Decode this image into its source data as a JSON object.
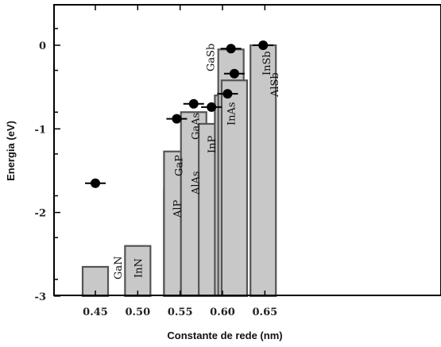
{
  "chart_data": {
    "type": "bar",
    "xlabel": "Constante de rede (nm)",
    "ylabel": "Energia (eV)",
    "xlim": [
      0.43,
      0.67
    ],
    "ylim": [
      -3,
      0.3
    ],
    "xticks": [
      "0.45",
      "0.50",
      "0.55",
      "0.60",
      "0.65"
    ],
    "yticks": [
      "0",
      "-1",
      "-2",
      "-3"
    ],
    "materials": [
      {
        "name": "GaN",
        "x": 0.45,
        "top": -2.65
      },
      {
        "name": "InN",
        "x": 0.5,
        "top": -2.4
      },
      {
        "name": "AlP",
        "x": 0.546,
        "top": -1.73
      },
      {
        "name": "GaP",
        "x": 0.546,
        "top": -1.27
      },
      {
        "name": "AlAs",
        "x": 0.566,
        "top": -1.32
      },
      {
        "name": "GaAs",
        "x": 0.566,
        "top": -0.8
      },
      {
        "name": "InP",
        "x": 0.587,
        "top": -0.94
      },
      {
        "name": "InAs",
        "x": 0.606,
        "top": -0.6
      },
      {
        "name": "GaSb",
        "x": 0.61,
        "top": -0.05
      },
      {
        "name": "AlSb",
        "x": 0.614,
        "top": -0.42
      },
      {
        "name": "InSb",
        "x": 0.648,
        "top": 0.0
      }
    ],
    "points": [
      {
        "x": 0.45,
        "y": -1.65
      },
      {
        "x": 0.546,
        "y": -0.88
      },
      {
        "x": 0.566,
        "y": -0.7
      },
      {
        "x": 0.587,
        "y": -0.74
      },
      {
        "x": 0.606,
        "y": -0.58
      },
      {
        "x": 0.61,
        "y": -0.04
      },
      {
        "x": 0.614,
        "y": -0.34
      },
      {
        "x": 0.648,
        "y": 0.0
      }
    ]
  }
}
